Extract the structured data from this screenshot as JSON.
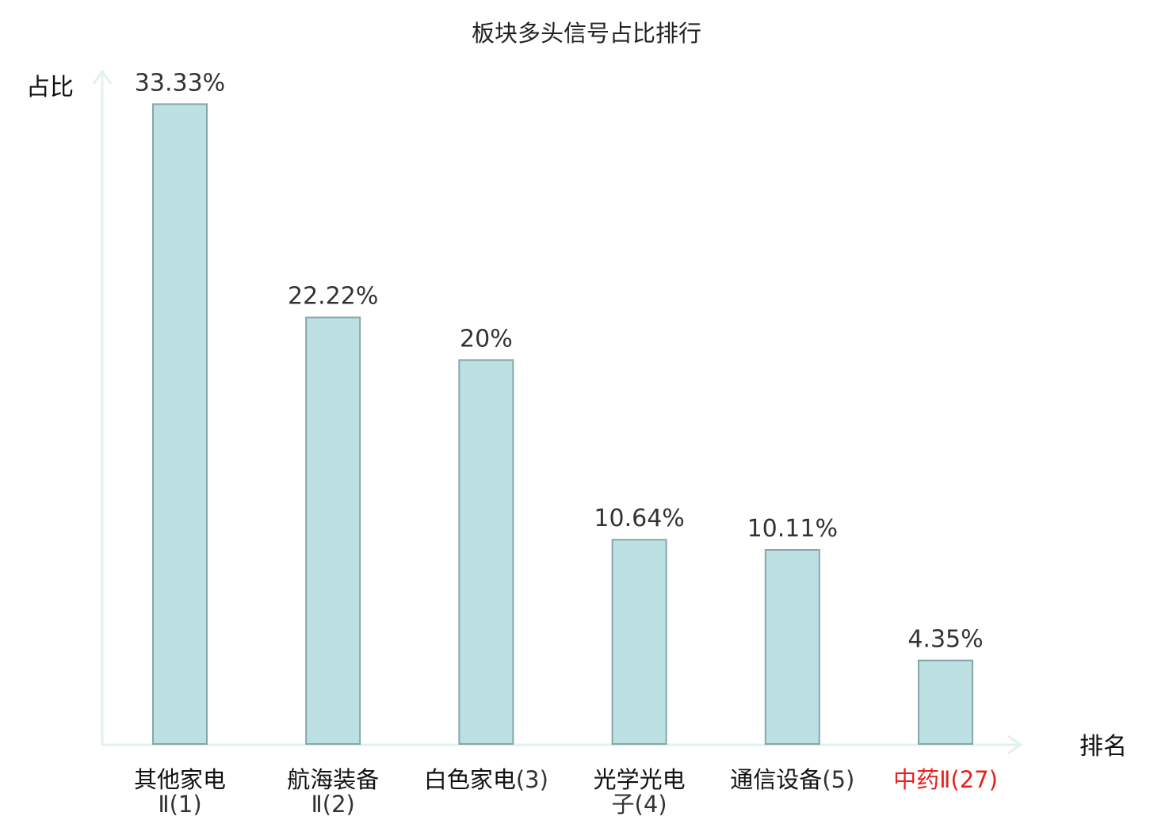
{
  "chart_data": {
    "type": "bar",
    "title": "板块多头信号占比排行",
    "ylabel": "占比",
    "xlabel": "排名",
    "ylim": [
      0,
      34.5
    ],
    "grid": false,
    "categories": [
      {
        "name": "其他家电",
        "rank": "Ⅱ(1)",
        "highlight": false
      },
      {
        "name": "航海装备",
        "rank": "Ⅱ(2)",
        "highlight": false
      },
      {
        "name": "白色家电",
        "rank": "(3)",
        "highlight": false
      },
      {
        "name": "光学光电",
        "rank": "子(4)",
        "highlight": false
      },
      {
        "name": "通信设备",
        "rank": "(5)",
        "highlight": false
      },
      {
        "name": "中药Ⅱ",
        "rank": "(27)",
        "highlight": true
      }
    ],
    "values": [
      33.33,
      22.22,
      20,
      10.64,
      10.11,
      4.35
    ],
    "value_labels": [
      "33.33%",
      "22.22%",
      "20%",
      "10.64%",
      "10.11%",
      "4.35%"
    ]
  },
  "colors": {
    "bar_fill": "#bde0e3",
    "bar_stroke": "#86a7aa",
    "axis": "#e0f2ef",
    "highlight_text": "#e8211d",
    "normal_text": "#111111"
  }
}
